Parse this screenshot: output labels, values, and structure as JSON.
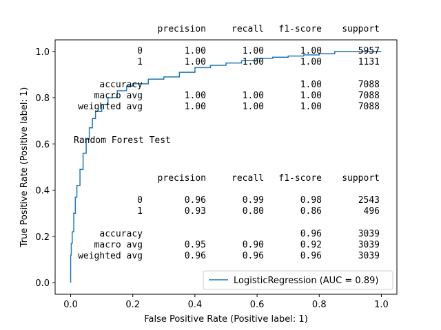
{
  "chart_data": {
    "type": "line",
    "xlabel": "False Positive Rate (Positive label: 1)",
    "ylabel": "True Positive Rate (Positive label: 1)",
    "xlim": [
      -0.05,
      1.05
    ],
    "ylim": [
      -0.05,
      1.05
    ],
    "x_ticks": [
      "0.0",
      "0.2",
      "0.4",
      "0.6",
      "0.8",
      "1.0"
    ],
    "y_ticks": [
      "0.0",
      "0.2",
      "0.4",
      "0.6",
      "0.8",
      "1.0"
    ],
    "grid": false,
    "legend_placement": "lower-right",
    "series": [
      {
        "name": "LogisticRegression (AUC = 0.89)",
        "color": "#1f77b4",
        "x": [
          0.0,
          0.0,
          0.002,
          0.005,
          0.01,
          0.015,
          0.02,
          0.03,
          0.04,
          0.05,
          0.06,
          0.07,
          0.08,
          0.1,
          0.12,
          0.15,
          0.18,
          0.2,
          0.25,
          0.3,
          0.35,
          0.4,
          0.45,
          0.5,
          0.55,
          0.6,
          0.65,
          0.7,
          0.75,
          0.8,
          0.85,
          0.9,
          0.95,
          1.0
        ],
        "y": [
          0.0,
          0.12,
          0.17,
          0.22,
          0.3,
          0.37,
          0.42,
          0.49,
          0.56,
          0.62,
          0.67,
          0.71,
          0.74,
          0.77,
          0.8,
          0.83,
          0.85,
          0.86,
          0.88,
          0.89,
          0.91,
          0.93,
          0.94,
          0.95,
          0.96,
          0.97,
          0.975,
          0.98,
          0.985,
          0.99,
          1.0,
          1.0,
          1.0,
          1.0
        ]
      }
    ],
    "annotations": {
      "train_report": {
        "header": [
          "precision",
          "recall",
          "f1-score",
          "support"
        ],
        "rows": [
          {
            "label": "0",
            "precision": "1.00",
            "recall": "1.00",
            "f1": "1.00",
            "support": "5957"
          },
          {
            "label": "1",
            "precision": "1.00",
            "recall": "1.00",
            "f1": "1.00",
            "support": "1131"
          },
          {
            "label": "accuracy",
            "precision": "",
            "recall": "",
            "f1": "1.00",
            "support": "7088"
          },
          {
            "label": "macro avg",
            "precision": "1.00",
            "recall": "1.00",
            "f1": "1.00",
            "support": "7088"
          },
          {
            "label": "weighted avg",
            "precision": "1.00",
            "recall": "1.00",
            "f1": "1.00",
            "support": "7088"
          }
        ]
      },
      "test_title": "Random Forest Test",
      "test_report": {
        "header": [
          "precision",
          "recall",
          "f1-score",
          "support"
        ],
        "rows": [
          {
            "label": "0",
            "precision": "0.96",
            "recall": "0.99",
            "f1": "0.98",
            "support": "2543"
          },
          {
            "label": "1",
            "precision": "0.93",
            "recall": "0.80",
            "f1": "0.86",
            "support": "496"
          },
          {
            "label": "accuracy",
            "precision": "",
            "recall": "",
            "f1": "0.96",
            "support": "3039"
          },
          {
            "label": "macro avg",
            "precision": "0.95",
            "recall": "0.90",
            "f1": "0.92",
            "support": "3039"
          },
          {
            "label": "weighted avg",
            "precision": "0.96",
            "recall": "0.96",
            "f1": "0.96",
            "support": "3039"
          }
        ]
      }
    }
  }
}
